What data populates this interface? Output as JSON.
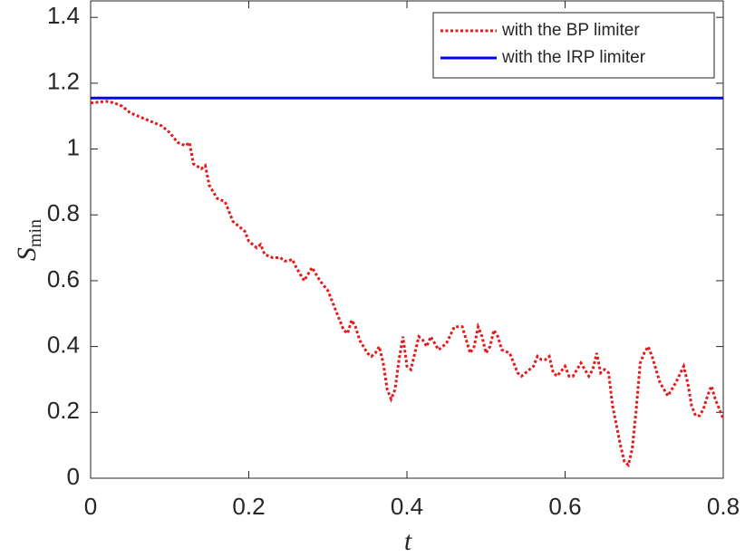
{
  "chart_data": {
    "type": "line",
    "xlabel": "t",
    "ylabel": "S",
    "ylabel_subscript": "min",
    "xlim": [
      0,
      0.8
    ],
    "ylim": [
      0,
      1.45
    ],
    "xticks": [
      0,
      0.2,
      0.4,
      0.6,
      0.8
    ],
    "yticks": [
      0,
      0.2,
      0.4,
      0.6,
      0.8,
      1,
      1.2,
      1.4
    ],
    "legend": "northeast",
    "series": [
      {
        "name": "with the BP limiter",
        "color": "#e41a1c",
        "style": "dotted",
        "x": [
          0,
          0.02,
          0.03,
          0.04,
          0.05,
          0.06,
          0.07,
          0.08,
          0.09,
          0.1,
          0.11,
          0.12,
          0.125,
          0.13,
          0.14,
          0.145,
          0.15,
          0.16,
          0.17,
          0.18,
          0.19,
          0.195,
          0.2,
          0.21,
          0.215,
          0.22,
          0.23,
          0.24,
          0.245,
          0.25,
          0.255,
          0.26,
          0.27,
          0.28,
          0.29,
          0.3,
          0.31,
          0.32,
          0.325,
          0.33,
          0.335,
          0.34,
          0.35,
          0.355,
          0.36,
          0.365,
          0.37,
          0.375,
          0.38,
          0.385,
          0.39,
          0.395,
          0.4,
          0.405,
          0.41,
          0.415,
          0.42,
          0.425,
          0.43,
          0.435,
          0.44,
          0.445,
          0.45,
          0.46,
          0.465,
          0.47,
          0.475,
          0.48,
          0.485,
          0.49,
          0.495,
          0.5,
          0.505,
          0.51,
          0.515,
          0.52,
          0.53,
          0.54,
          0.545,
          0.55,
          0.56,
          0.565,
          0.57,
          0.575,
          0.58,
          0.585,
          0.59,
          0.6,
          0.605,
          0.61,
          0.62,
          0.625,
          0.63,
          0.635,
          0.64,
          0.645,
          0.65,
          0.655,
          0.66,
          0.67,
          0.675,
          0.68,
          0.685,
          0.69,
          0.695,
          0.7,
          0.705,
          0.71,
          0.72,
          0.73,
          0.74,
          0.75,
          0.755,
          0.76,
          0.765,
          0.77,
          0.775,
          0.78,
          0.785,
          0.79,
          0.8
        ],
        "values": [
          1.14,
          1.145,
          1.14,
          1.13,
          1.11,
          1.1,
          1.09,
          1.08,
          1.07,
          1.05,
          1.02,
          1.01,
          1.02,
          0.955,
          0.94,
          0.95,
          0.89,
          0.85,
          0.84,
          0.78,
          0.76,
          0.75,
          0.72,
          0.7,
          0.71,
          0.68,
          0.67,
          0.67,
          0.66,
          0.66,
          0.665,
          0.64,
          0.6,
          0.64,
          0.6,
          0.57,
          0.51,
          0.45,
          0.44,
          0.48,
          0.46,
          0.42,
          0.38,
          0.37,
          0.38,
          0.4,
          0.35,
          0.27,
          0.24,
          0.27,
          0.36,
          0.43,
          0.34,
          0.33,
          0.38,
          0.43,
          0.42,
          0.4,
          0.43,
          0.41,
          0.39,
          0.4,
          0.41,
          0.46,
          0.46,
          0.46,
          0.42,
          0.38,
          0.4,
          0.46,
          0.43,
          0.38,
          0.4,
          0.45,
          0.43,
          0.39,
          0.38,
          0.32,
          0.31,
          0.32,
          0.34,
          0.37,
          0.36,
          0.36,
          0.37,
          0.32,
          0.31,
          0.34,
          0.31,
          0.31,
          0.35,
          0.33,
          0.31,
          0.33,
          0.38,
          0.32,
          0.33,
          0.32,
          0.22,
          0.1,
          0.05,
          0.04,
          0.09,
          0.21,
          0.35,
          0.38,
          0.4,
          0.37,
          0.29,
          0.25,
          0.29,
          0.34,
          0.29,
          0.22,
          0.19,
          0.19,
          0.21,
          0.25,
          0.28,
          0.24,
          0.18
        ]
      },
      {
        "name": "with the IRP limiter",
        "color": "#0000ff",
        "style": "solid",
        "x": [
          0,
          0.8
        ],
        "values": [
          1.155,
          1.155
        ]
      }
    ]
  }
}
